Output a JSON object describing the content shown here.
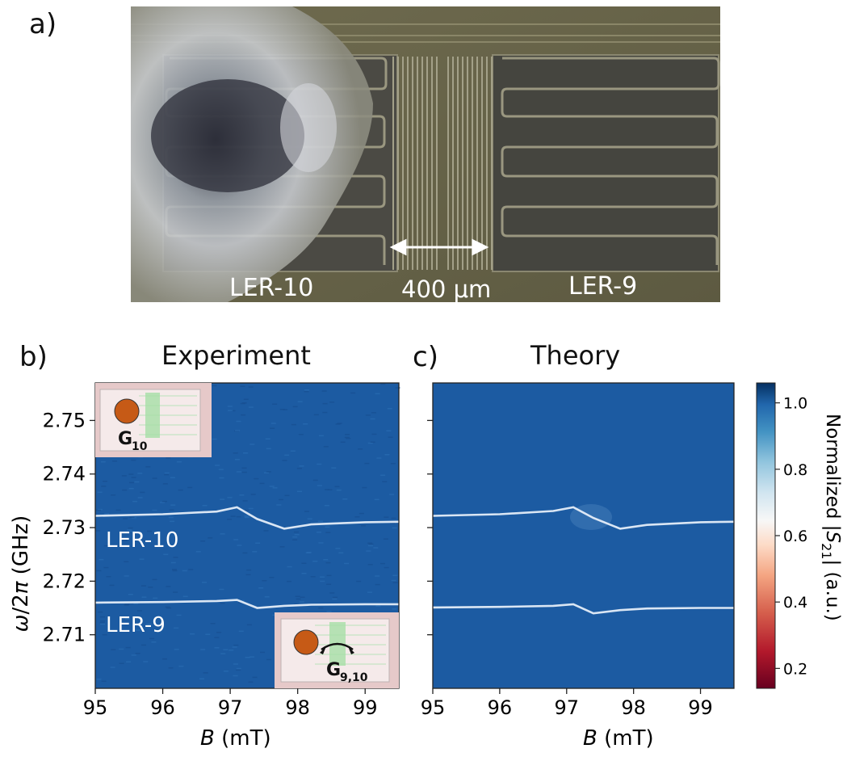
{
  "panels": {
    "a": {
      "letter": "a)",
      "labels": {
        "left": "LER-10",
        "center": "400 μm",
        "right": "LER-9"
      }
    },
    "b": {
      "letter": "b)",
      "title": "Experiment",
      "trace_labels": {
        "upper": "LER-10",
        "lower": "LER-9"
      },
      "insets": {
        "top_left": "G",
        "top_left_sub": "10",
        "bottom_right": "G",
        "bottom_right_sub": "9,10"
      }
    },
    "c": {
      "letter": "c)",
      "title": "Theory"
    }
  },
  "colors": {
    "field": "#1b5aa0",
    "resonance": "#eaf2fb",
    "inset_bg": "#e8c9c9",
    "inset_dot": "#c65a16",
    "inset_resonator": "#9fd89f"
  },
  "chart_data": [
    {
      "type": "heatmap",
      "title": "Experiment",
      "xlabel": "B (mT)",
      "ylabel": "ω/2π (GHz)",
      "xlim": [
        95,
        99.5
      ],
      "ylim": [
        2.7,
        2.757
      ],
      "x_ticks": [
        95,
        96,
        97,
        98,
        99
      ],
      "y_ticks": [
        2.71,
        2.72,
        2.73,
        2.74,
        2.75
      ],
      "x_tick_labels": [
        "95",
        "96",
        "97",
        "98",
        "99"
      ],
      "y_tick_labels": [
        "2.71",
        "2.72",
        "2.73",
        "2.74",
        "2.75"
      ],
      "series": [
        {
          "name": "LER-10",
          "x": [
            95,
            96,
            96.8,
            97.1,
            97.4,
            97.8,
            98.2,
            99,
            99.5
          ],
          "y": [
            2.7322,
            2.7325,
            2.733,
            2.7338,
            2.7316,
            2.7298,
            2.7306,
            2.731,
            2.7311
          ]
        },
        {
          "name": "LER-9",
          "x": [
            95,
            96,
            96.8,
            97.1,
            97.4,
            97.8,
            98.2,
            99,
            99.5
          ],
          "y": [
            2.716,
            2.7161,
            2.7163,
            2.7165,
            2.715,
            2.7154,
            2.7156,
            2.7157,
            2.7157
          ]
        }
      ]
    },
    {
      "type": "heatmap",
      "title": "Theory",
      "xlabel": "B (mT)",
      "xlim": [
        95,
        99.5
      ],
      "ylim": [
        2.7,
        2.757
      ],
      "x_ticks": [
        95,
        96,
        97,
        98,
        99
      ],
      "y_ticks": [
        2.71,
        2.72,
        2.73,
        2.74,
        2.75
      ],
      "x_tick_labels": [
        "95",
        "96",
        "97",
        "98",
        "99"
      ],
      "colorbar": {
        "label": "Normalized |S21| (a.u.)",
        "label_main": "Normalized |",
        "label_var": "S",
        "label_sub": "21",
        "label_tail": "| (a.u.)",
        "range": [
          0.14,
          1.06
        ],
        "ticks": [
          0.2,
          0.4,
          0.6,
          0.8,
          1.0
        ],
        "tick_labels": [
          "0.2",
          "0.4",
          "0.6",
          "0.8",
          "1.0"
        ]
      },
      "series": [
        {
          "x": [
            95,
            96,
            96.8,
            97.1,
            97.4,
            97.8,
            98.2,
            99,
            99.5
          ],
          "y": [
            2.7322,
            2.7325,
            2.7331,
            2.7338,
            2.7318,
            2.7298,
            2.7305,
            2.731,
            2.7311
          ]
        },
        {
          "x": [
            95,
            96,
            96.8,
            97.1,
            97.4,
            97.8,
            98.2,
            99,
            99.5
          ],
          "y": [
            2.7151,
            2.7152,
            2.7154,
            2.7157,
            2.714,
            2.7146,
            2.7149,
            2.715,
            2.715
          ]
        }
      ]
    }
  ]
}
